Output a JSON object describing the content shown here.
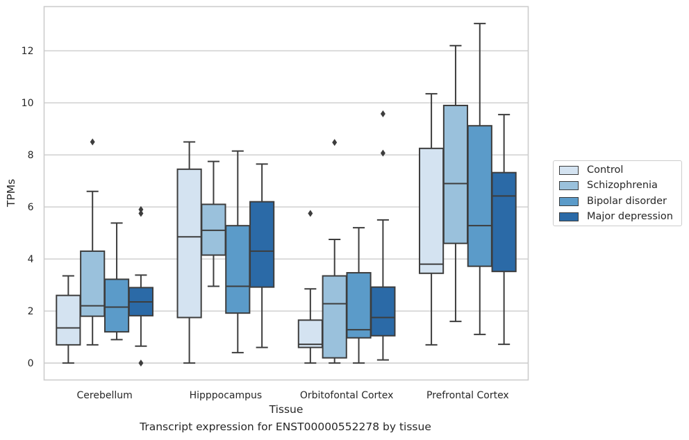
{
  "chart_data": {
    "type": "box",
    "title": "",
    "caption": "Transcript expression for ENST00000552278 by tissue",
    "xlabel": "Tissue",
    "ylabel": "TPMs",
    "ylim": [
      -0.65,
      13.7
    ],
    "yticks": [
      "0",
      "2",
      "4",
      "6",
      "8",
      "10",
      "12"
    ],
    "grid": true,
    "legend_position": "right",
    "categories": [
      "Cerebellum",
      "Hipppocampus",
      "Orbitofontal Cortex",
      "Prefrontal Cortex"
    ],
    "series": [
      {
        "name": "Control",
        "color": "#d4e3f1",
        "boxes": [
          {
            "min": 0.0,
            "q1": 0.7,
            "median": 1.35,
            "q3": 2.6,
            "max": 3.35,
            "outliers": []
          },
          {
            "min": 0.0,
            "q1": 1.75,
            "median": 4.85,
            "q3": 7.45,
            "max": 8.5,
            "outliers": []
          },
          {
            "min": 0.0,
            "q1": 0.6,
            "median": 0.72,
            "q3": 1.65,
            "max": 2.85,
            "outliers": [
              5.75
            ]
          },
          {
            "min": 0.7,
            "q1": 3.45,
            "median": 3.8,
            "q3": 8.25,
            "max": 10.35,
            "outliers": []
          }
        ]
      },
      {
        "name": "Schizophrenia",
        "color": "#9ac1dc",
        "boxes": [
          {
            "min": 0.7,
            "q1": 1.8,
            "median": 2.2,
            "q3": 4.3,
            "max": 6.6,
            "outliers": [
              8.5
            ]
          },
          {
            "min": 2.95,
            "q1": 4.15,
            "median": 5.1,
            "q3": 6.1,
            "max": 7.75,
            "outliers": []
          },
          {
            "min": 0.0,
            "q1": 0.2,
            "median": 2.28,
            "q3": 3.35,
            "max": 4.75,
            "outliers": [
              8.48
            ]
          },
          {
            "min": 1.6,
            "q1": 4.6,
            "median": 6.9,
            "q3": 9.9,
            "max": 12.2,
            "outliers": []
          }
        ]
      },
      {
        "name": "Bipolar disorder",
        "color": "#5b9bc9",
        "boxes": [
          {
            "min": 0.9,
            "q1": 1.2,
            "median": 2.15,
            "q3": 3.22,
            "max": 5.38,
            "outliers": []
          },
          {
            "min": 0.4,
            "q1": 1.92,
            "median": 2.95,
            "q3": 5.28,
            "max": 8.15,
            "outliers": []
          },
          {
            "min": 0.0,
            "q1": 0.97,
            "median": 1.28,
            "q3": 3.47,
            "max": 5.2,
            "outliers": []
          },
          {
            "min": 1.1,
            "q1": 3.72,
            "median": 5.28,
            "q3": 9.12,
            "max": 13.05,
            "outliers": []
          }
        ]
      },
      {
        "name": "Major depression",
        "color": "#2b6aa7",
        "boxes": [
          {
            "min": 0.65,
            "q1": 1.82,
            "median": 2.35,
            "q3": 2.9,
            "max": 3.38,
            "outliers": [
              5.9,
              5.75,
              0.0
            ]
          },
          {
            "min": 0.6,
            "q1": 2.92,
            "median": 4.3,
            "q3": 6.2,
            "max": 7.65,
            "outliers": []
          },
          {
            "min": 0.12,
            "q1": 1.05,
            "median": 1.75,
            "q3": 2.92,
            "max": 5.5,
            "outliers": [
              9.58,
              8.07
            ]
          },
          {
            "min": 0.72,
            "q1": 3.52,
            "median": 6.42,
            "q3": 7.32,
            "max": 9.55,
            "outliers": []
          }
        ]
      }
    ]
  }
}
